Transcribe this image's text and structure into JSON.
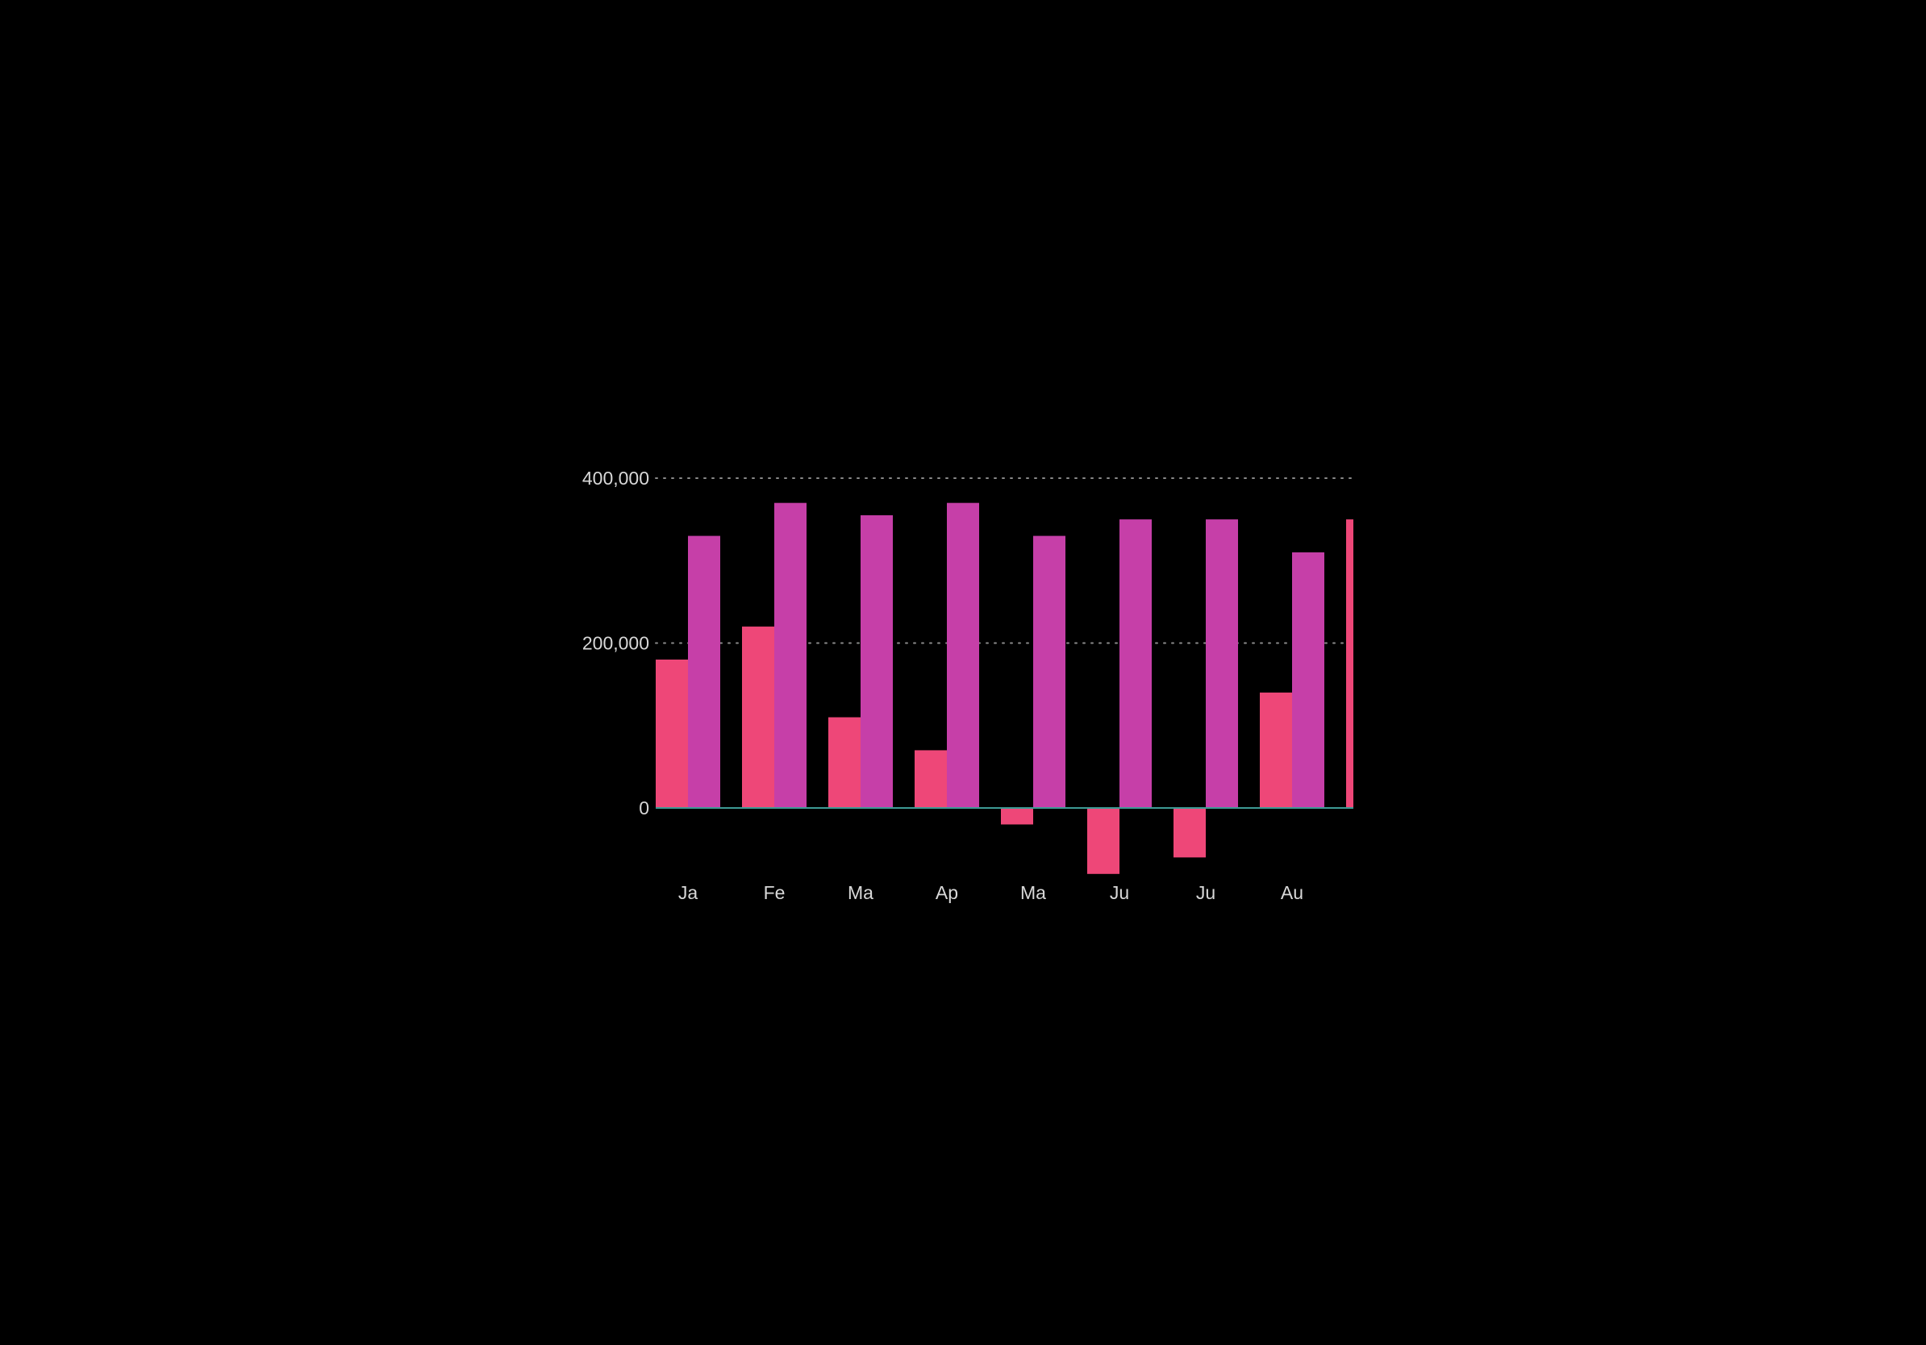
{
  "chart_data": {
    "type": "bar",
    "categories": [
      "Ja",
      "Fe",
      "Ma",
      "Ap",
      "Ma",
      "Ju",
      "Ju",
      "Au",
      ""
    ],
    "series": [
      {
        "color": "#ee4778",
        "values": [
          180000,
          220000,
          110000,
          70000,
          -20000,
          -80000,
          -60000,
          140000,
          350000
        ]
      },
      {
        "color": "#c63fa8",
        "values": [
          330000,
          370000,
          355000,
          370000,
          330000,
          350000,
          350000,
          310000,
          null
        ]
      }
    ],
    "y_ticks": [
      {
        "value": 400000,
        "label": "400,000"
      },
      {
        "value": 200000,
        "label": "200,000"
      },
      {
        "value": 0,
        "label": "0"
      }
    ],
    "ylim": [
      -80000,
      400000
    ],
    "grid": true,
    "legend": "none",
    "background": "#000000",
    "title": "",
    "xlabel": "",
    "ylabel": ""
  }
}
